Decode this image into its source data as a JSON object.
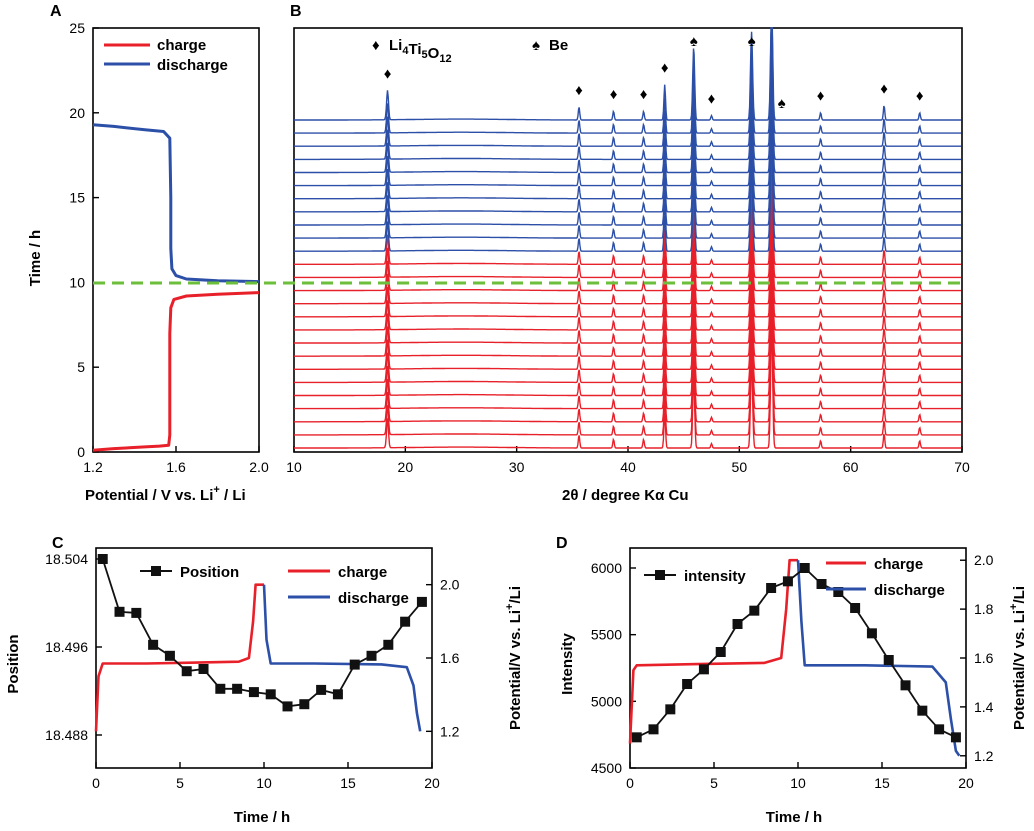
{
  "colors": {
    "charge": "#e8202a",
    "discharge": "#2c4fa7",
    "marker": "#111111",
    "guide": "#6cbf3a"
  },
  "panels": {
    "A": {
      "letter": "A",
      "type": "line",
      "xlabel": "Potential / V vs. Li+ / Li",
      "ylabel": "Time / h",
      "xlim": [
        1.2,
        2.0
      ],
      "ylim": [
        0,
        25
      ],
      "xticks": [
        "1.2",
        "1.6",
        "2.0"
      ],
      "yticks": [
        "0",
        "5",
        "10",
        "15",
        "20",
        "25"
      ],
      "legend": [
        "charge",
        "discharge"
      ],
      "series": [
        {
          "name": "charge",
          "points": [
            [
              1.2,
              0.1
            ],
            [
              1.3,
              0.2
            ],
            [
              1.45,
              0.3
            ],
            [
              1.52,
              0.35
            ],
            [
              1.565,
              0.4
            ],
            [
              1.57,
              1
            ],
            [
              1.57,
              4
            ],
            [
              1.57,
              7
            ],
            [
              1.575,
              8.5
            ],
            [
              1.59,
              9.0
            ],
            [
              1.65,
              9.2
            ],
            [
              1.8,
              9.3
            ],
            [
              2.0,
              9.4
            ]
          ]
        },
        {
          "name": "discharge",
          "points": [
            [
              2.0,
              10.05
            ],
            [
              1.8,
              10.1
            ],
            [
              1.65,
              10.2
            ],
            [
              1.6,
              10.4
            ],
            [
              1.58,
              10.8
            ],
            [
              1.575,
              12
            ],
            [
              1.575,
              15
            ],
            [
              1.57,
              18.5
            ],
            [
              1.54,
              18.9
            ],
            [
              1.45,
              19.0
            ],
            [
              1.3,
              19.2
            ],
            [
              1.2,
              19.3
            ]
          ]
        }
      ],
      "guide_y": 10
    },
    "B": {
      "letter": "B",
      "type": "line",
      "xlabel": "2θ / degree Kα Cu",
      "xlim": [
        10,
        70
      ],
      "xticks": [
        "10",
        "20",
        "30",
        "40",
        "50",
        "60",
        "70"
      ],
      "legend": {
        "diamond": "♦",
        "diamond_label": "Li4Ti5O12",
        "spade": "♠",
        "spade_label": "Be",
        "formula": [
          {
            "t": "Li"
          },
          {
            "t": "4",
            "sub": true
          },
          {
            "t": "Ti"
          },
          {
            "t": "5",
            "sub": true
          },
          {
            "t": "O"
          },
          {
            "t": "12",
            "sub": true
          }
        ]
      },
      "charge_pattern_count": 15,
      "discharge_pattern_count": 11,
      "peaks": [
        [
          18.4,
          1.0,
          0.12
        ],
        [
          35.6,
          0.45,
          0.09
        ],
        [
          38.7,
          0.3,
          0.09
        ],
        [
          41.4,
          0.3,
          0.09
        ],
        [
          43.3,
          1.2,
          0.1
        ],
        [
          45.9,
          2.5,
          0.12
        ],
        [
          47.5,
          0.15,
          0.09
        ],
        [
          51.1,
          3.0,
          0.13
        ],
        [
          52.9,
          4.2,
          0.13
        ],
        [
          57.3,
          0.25,
          0.09
        ],
        [
          63.0,
          0.5,
          0.09
        ],
        [
          66.2,
          0.25,
          0.09
        ]
      ],
      "diamond_markers": [
        18.4,
        35.6,
        38.7,
        41.4,
        43.3,
        47.5,
        57.3,
        63.0,
        66.2
      ],
      "spade_markers": [
        45.9,
        51.1,
        53.8
      ]
    },
    "C": {
      "letter": "C",
      "type": "line",
      "xlabel": "Time / h",
      "ylabel": "Position",
      "ylabel_right": "Potential/V vs. Li+/Li",
      "xlim": [
        0,
        20
      ],
      "ylim": [
        18.485,
        18.505
      ],
      "ylim_right": [
        1.0,
        2.2
      ],
      "xticks": [
        "0",
        "5",
        "10",
        "15",
        "20"
      ],
      "yticks": [
        "18.488",
        "18.496",
        "18.504"
      ],
      "yticks_right": [
        "1.2",
        "1.6",
        "2.0"
      ],
      "legend": [
        "Position",
        "charge",
        "discharge"
      ],
      "position": {
        "x": [
          0.4,
          1.4,
          2.4,
          3.4,
          4.4,
          5.4,
          6.4,
          7.4,
          8.4,
          9.4,
          10.4,
          11.4,
          12.4,
          13.4,
          14.4,
          15.4,
          16.4,
          17.4,
          18.4,
          19.4
        ],
        "y": [
          18.504,
          18.4992,
          18.4991,
          18.4962,
          18.4952,
          18.4938,
          18.494,
          18.4922,
          18.4922,
          18.4919,
          18.4917,
          18.4906,
          18.4908,
          18.4921,
          18.4917,
          18.4944,
          18.4952,
          18.4962,
          18.4983,
          18.5001
        ]
      },
      "charge": [
        [
          0,
          1.2
        ],
        [
          0.15,
          1.5
        ],
        [
          0.4,
          1.57
        ],
        [
          3,
          1.57
        ],
        [
          6,
          1.575
        ],
        [
          8.5,
          1.58
        ],
        [
          9.1,
          1.6
        ],
        [
          9.35,
          1.8
        ],
        [
          9.5,
          2.0
        ],
        [
          10.0,
          2.0
        ]
      ],
      "discharge": [
        [
          10.0,
          2.0
        ],
        [
          10.15,
          1.7
        ],
        [
          10.4,
          1.57
        ],
        [
          13,
          1.57
        ],
        [
          17,
          1.565
        ],
        [
          18.5,
          1.55
        ],
        [
          18.9,
          1.45
        ],
        [
          19.1,
          1.3
        ],
        [
          19.3,
          1.2
        ]
      ]
    },
    "D": {
      "letter": "D",
      "type": "line",
      "xlabel": "Time / h",
      "ylabel": "Intensity",
      "ylabel_right": "Potential/V vs. Li+/Li",
      "xlim": [
        0,
        20
      ],
      "ylim": [
        4500,
        6150
      ],
      "ylim_right": [
        1.15,
        2.05
      ],
      "xticks": [
        "0",
        "5",
        "10",
        "15",
        "20"
      ],
      "yticks": [
        "4500",
        "5000",
        "5500",
        "6000"
      ],
      "yticks_right": [
        "1.2",
        "1.4",
        "1.6",
        "1.8",
        "2.0"
      ],
      "legend": [
        "intensity",
        "charge",
        "discharge"
      ],
      "intensity": {
        "x": [
          0.4,
          1.4,
          2.4,
          3.4,
          4.4,
          5.4,
          6.4,
          7.4,
          8.4,
          9.4,
          10.4,
          11.4,
          12.4,
          13.4,
          14.4,
          15.4,
          16.4,
          17.4,
          18.4,
          19.4
        ],
        "y": [
          4730,
          4790,
          4940,
          5130,
          5240,
          5370,
          5580,
          5680,
          5850,
          5900,
          6000,
          5880,
          5820,
          5700,
          5510,
          5310,
          5120,
          4930,
          4790,
          4730
        ]
      },
      "charge": [
        [
          0,
          1.25
        ],
        [
          0.2,
          1.55
        ],
        [
          0.4,
          1.57
        ],
        [
          4,
          1.575
        ],
        [
          8,
          1.58
        ],
        [
          9.0,
          1.6
        ],
        [
          9.3,
          1.8
        ],
        [
          9.5,
          2.0
        ],
        [
          10.0,
          2.0
        ]
      ],
      "discharge": [
        [
          10.0,
          2.0
        ],
        [
          10.2,
          1.75
        ],
        [
          10.4,
          1.57
        ],
        [
          14,
          1.57
        ],
        [
          18,
          1.565
        ],
        [
          18.8,
          1.5
        ],
        [
          19.1,
          1.35
        ],
        [
          19.4,
          1.22
        ],
        [
          19.6,
          1.2
        ]
      ]
    }
  },
  "chart_data": [
    {
      "type": "line",
      "title": "A",
      "xlabel": "Potential / V vs. Li+ / Li",
      "ylabel": "Time / h",
      "xlim": [
        1.2,
        2.0
      ],
      "ylim": [
        0,
        25
      ],
      "legend": [
        "charge",
        "discharge"
      ]
    },
    {
      "type": "line",
      "title": "B",
      "xlabel": "2θ / degree Kα Cu",
      "xlim": [
        10,
        70
      ],
      "legend": [
        "Li4Ti5O12",
        "Be"
      ],
      "patterns": 26
    },
    {
      "type": "line",
      "title": "C",
      "xlabel": "Time / h",
      "ylabel": "Position",
      "ylabel_right": "Potential/V vs. Li+/Li",
      "xlim": [
        0,
        20
      ]
    },
    {
      "type": "line",
      "title": "D",
      "xlabel": "Time / h",
      "ylabel": "Intensity",
      "ylabel_right": "Potential/V vs. Li+/Li",
      "xlim": [
        0,
        20
      ]
    }
  ]
}
